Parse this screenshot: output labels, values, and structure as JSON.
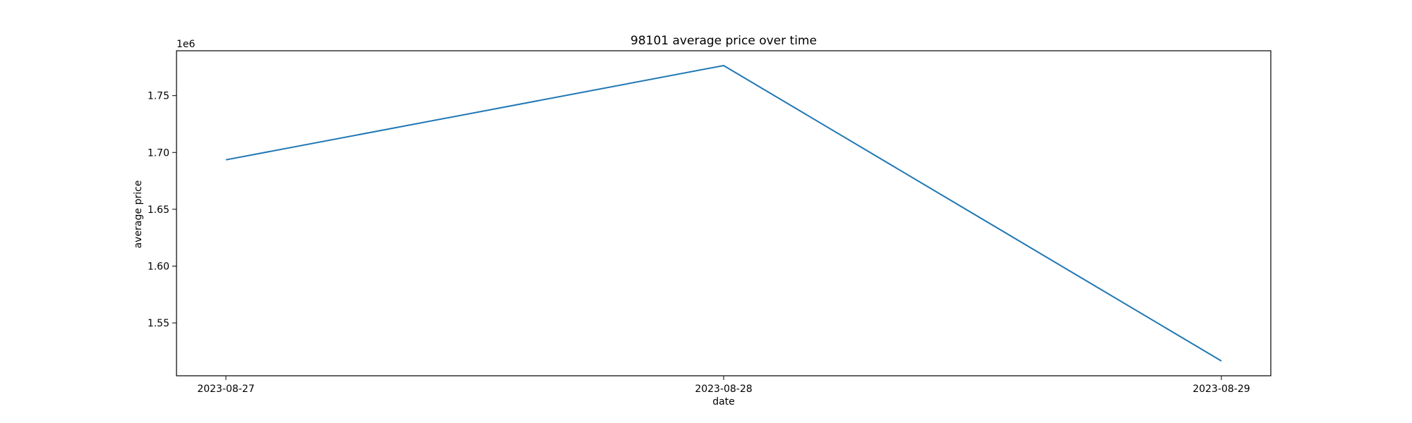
{
  "chart_data": {
    "type": "line",
    "title": "98101 average price over time",
    "xlabel": "date",
    "ylabel": "average price",
    "y_offset_label": "1e6",
    "x": [
      "2023-08-27",
      "2023-08-28",
      "2023-08-29"
    ],
    "series": [
      {
        "values": [
          1693500,
          1776500,
          1516500
        ],
        "color": "#1f77b4"
      }
    ],
    "y_ticks": [
      1.55,
      1.6,
      1.65,
      1.7,
      1.75
    ],
    "y_tick_labels": [
      "1.55",
      "1.60",
      "1.65",
      "1.70",
      "1.75"
    ],
    "y_tick_scale": 1000000,
    "ylim": [
      1503500,
      1789500
    ],
    "grid": false,
    "legend": "none"
  }
}
